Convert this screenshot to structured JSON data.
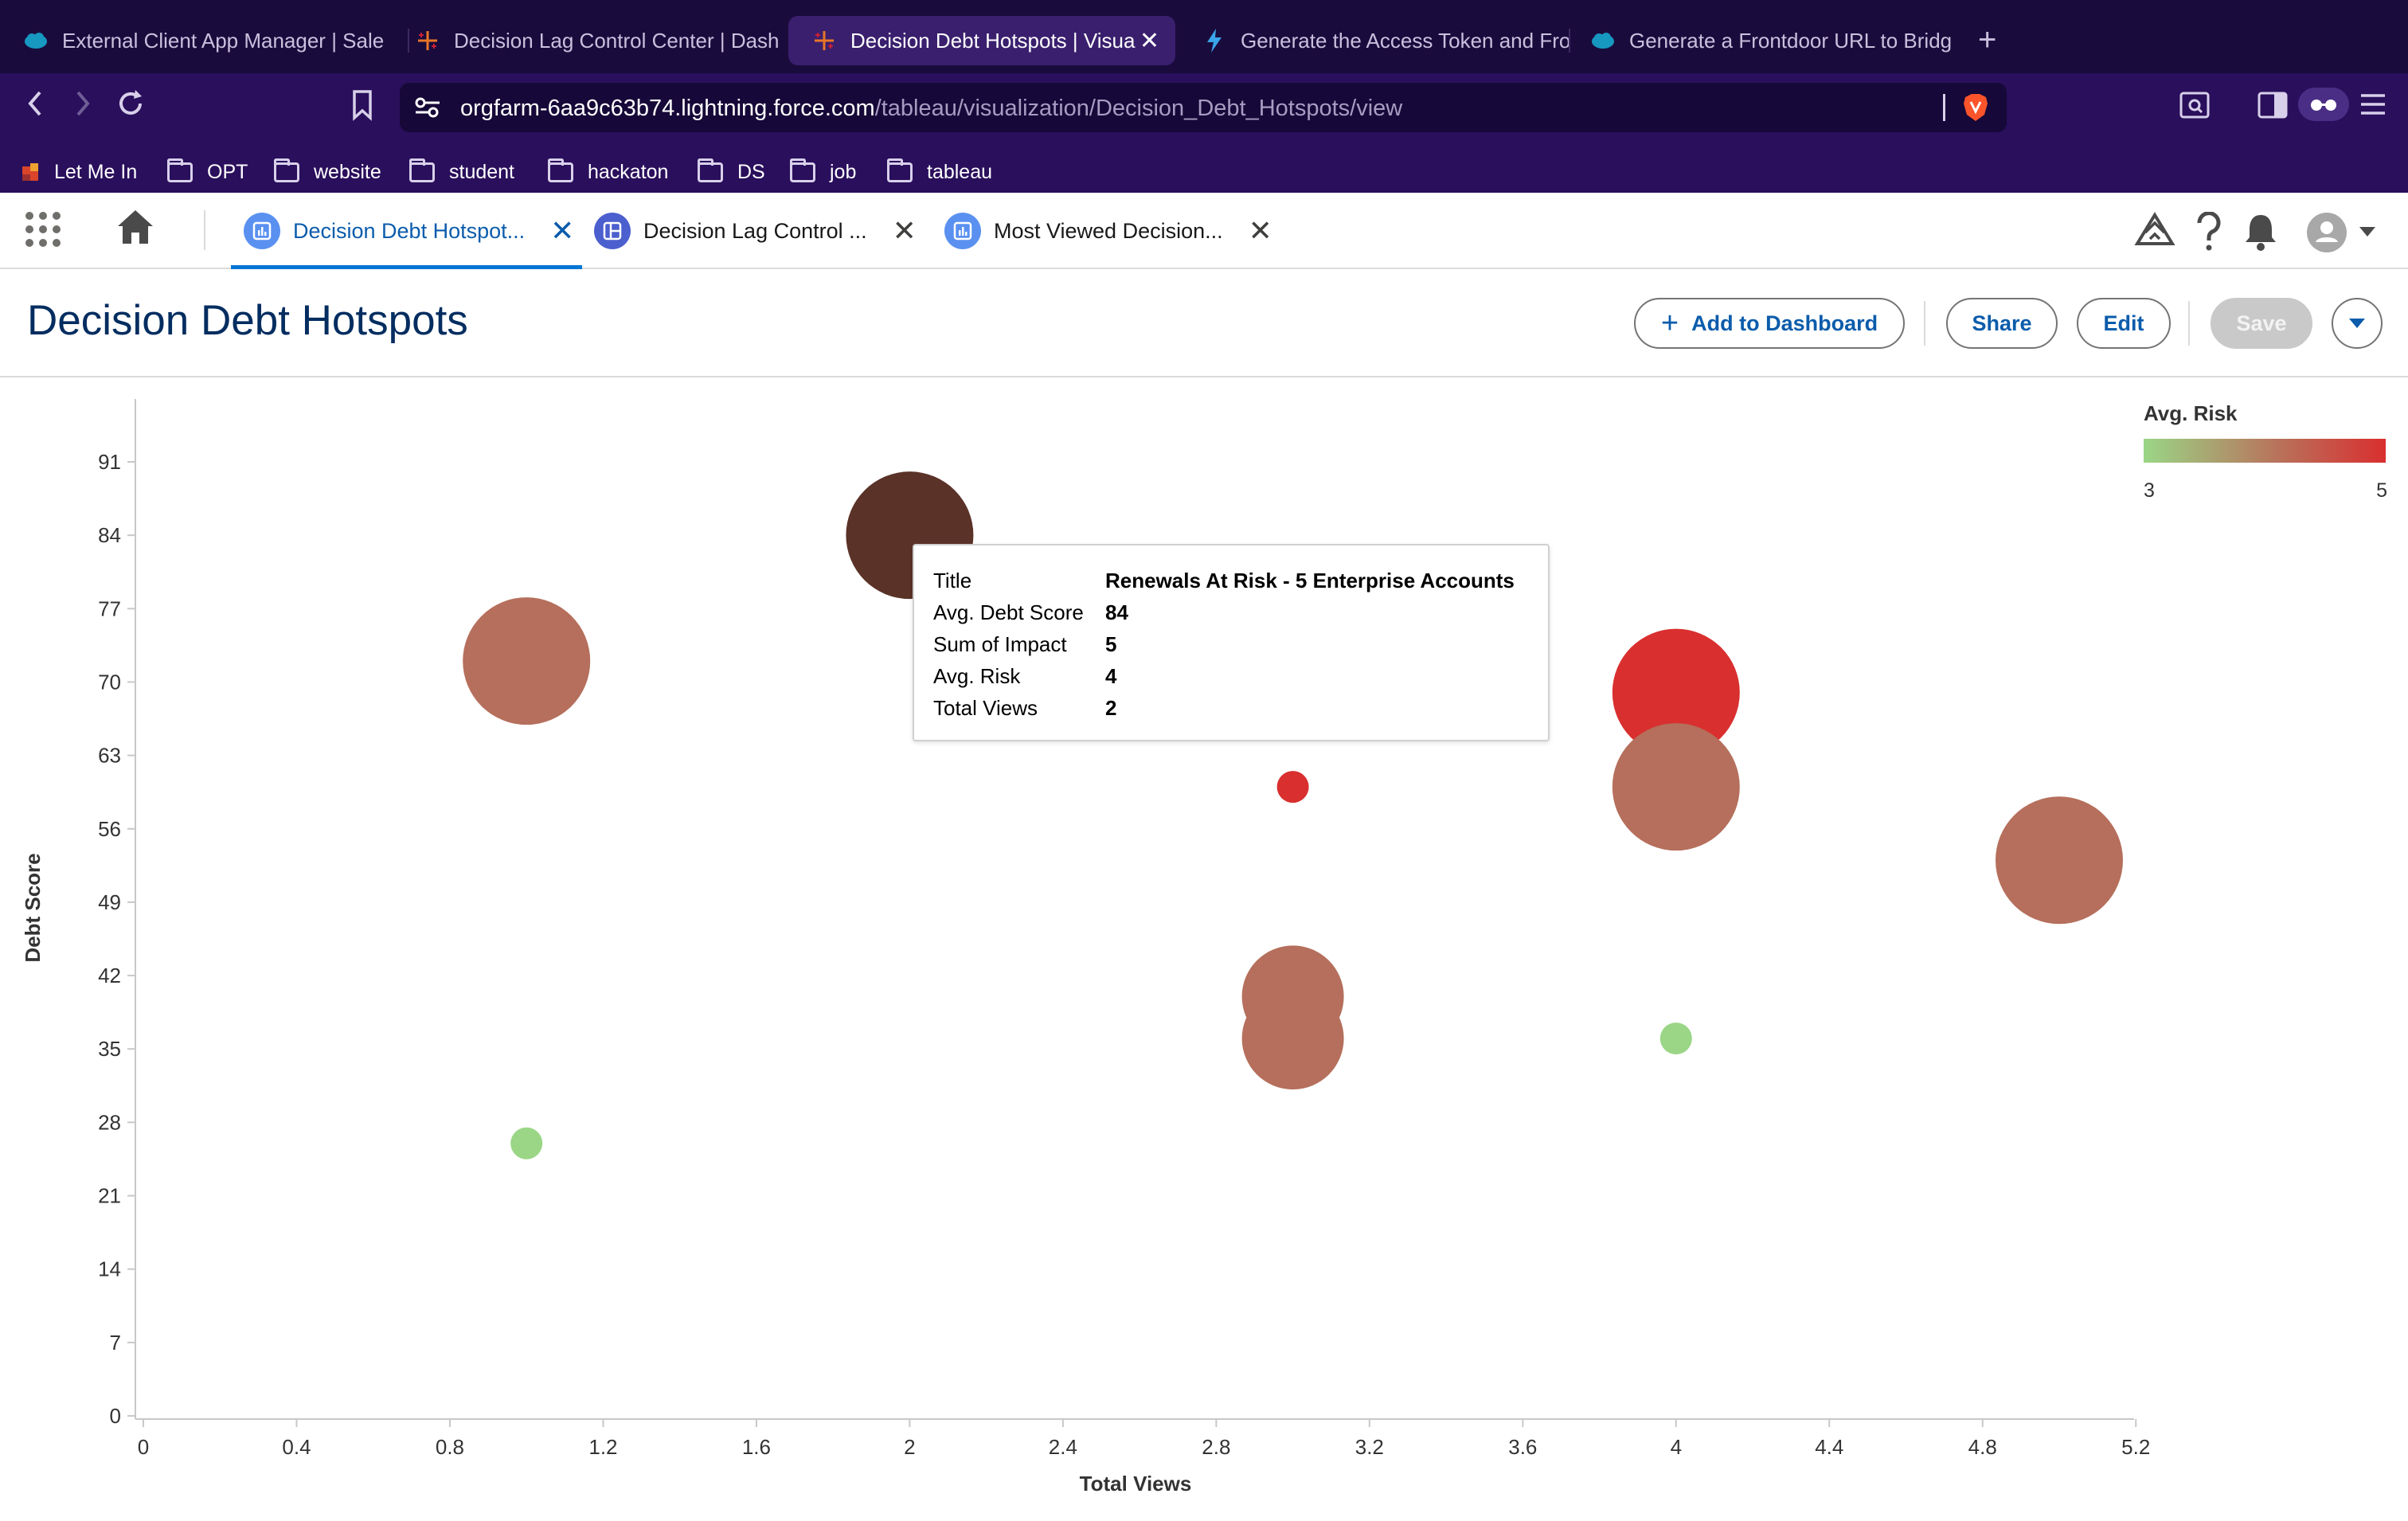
{
  "browser": {
    "tabs": [
      {
        "title": "External Client App Manager | Sale",
        "icon": "salesforce-cloud-icon",
        "active": false
      },
      {
        "title": "Decision Lag Control Center | Dash",
        "icon": "tableau-icon",
        "active": false
      },
      {
        "title": "Decision Debt Hotspots | Visua",
        "icon": "tableau-icon",
        "active": true
      },
      {
        "title": "Generate the Access Token and Fro",
        "icon": "lightning-icon",
        "active": false
      },
      {
        "title": "Generate a Frontdoor URL to Bridg",
        "icon": "salesforce-cloud-icon",
        "active": false
      }
    ],
    "url_host": "orgfarm-6aa9c63b74.lightning.force.com",
    "url_path": "/tableau/visualization/Decision_Debt_Hotspots/view",
    "bookmarks": [
      "Let Me In",
      "OPT",
      "website",
      "student",
      "hackaton",
      "DS",
      "job",
      "tableau"
    ]
  },
  "app": {
    "tabs": [
      {
        "label": "Decision Debt Hotspot...",
        "active": true
      },
      {
        "label": "Decision Lag Control ...",
        "active": false
      },
      {
        "label": "Most Viewed Decision...",
        "active": false
      }
    ]
  },
  "page": {
    "title": "Decision Debt Hotspots",
    "buttons": {
      "add_to_dashboard": "Add to Dashboard",
      "share": "Share",
      "edit": "Edit",
      "save": "Save"
    }
  },
  "chart_data": {
    "type": "scatter",
    "xlabel": "Total Views",
    "ylabel": "Debt Score",
    "xlim": [
      0,
      5.4
    ],
    "ylim": [
      0,
      97
    ],
    "x_ticks": [
      "0",
      "0.4",
      "0.8",
      "1.2",
      "1.6",
      "2",
      "2.4",
      "2.8",
      "3.2",
      "3.6",
      "4",
      "4.4",
      "4.8",
      "5.2"
    ],
    "y_ticks": [
      "0",
      "7",
      "14",
      "21",
      "28",
      "35",
      "42",
      "49",
      "56",
      "63",
      "70",
      "77",
      "84",
      "91"
    ],
    "size_by": "Sum of Impact",
    "color_by": "Avg. Risk",
    "legend": {
      "title": "Avg. Risk",
      "min": "3",
      "max": "5",
      "position": "top-right",
      "colors": [
        "#9ad686",
        "#b8735c",
        "#d92f2f"
      ]
    },
    "points": [
      {
        "x": 2,
        "y": 84,
        "size": 5,
        "color": "#5a3228"
      },
      {
        "x": 1,
        "y": 72,
        "size": 5,
        "color": "#b56f5c"
      },
      {
        "x": 1,
        "y": 26,
        "size": 1,
        "color": "#9ad686"
      },
      {
        "x": 3,
        "y": 60,
        "size": 1,
        "color": "#d92f2f"
      },
      {
        "x": 3,
        "y": 40,
        "size": 4,
        "color": "#b56f5c"
      },
      {
        "x": 3,
        "y": 36,
        "size": 4,
        "color": "#b56f5c"
      },
      {
        "x": 4,
        "y": 69,
        "size": 5,
        "color": "#d92f2f"
      },
      {
        "x": 4,
        "y": 60,
        "size": 5,
        "color": "#b56f5c"
      },
      {
        "x": 4,
        "y": 36,
        "size": 1,
        "color": "#9ad686"
      },
      {
        "x": 5,
        "y": 53,
        "size": 5,
        "color": "#b56f5c"
      }
    ]
  },
  "tooltip": {
    "rows": [
      {
        "key": "Title",
        "value": "Renewals At Risk - 5 Enterprise Accounts"
      },
      {
        "key": "Avg. Debt Score",
        "value": "84"
      },
      {
        "key": "Sum of Impact",
        "value": "5"
      },
      {
        "key": "Avg. Risk",
        "value": "4"
      },
      {
        "key": "Total Views",
        "value": "2"
      }
    ]
  }
}
